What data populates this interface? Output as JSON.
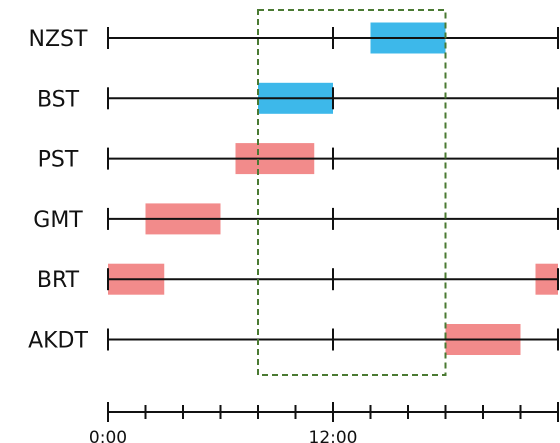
{
  "chart_data": {
    "type": "timeline",
    "x_unit": "hours",
    "xlim": [
      0,
      24
    ],
    "ticks": {
      "major": [
        0,
        12,
        24
      ],
      "minor_step": 2
    },
    "tick_labels": [
      {
        "x": 0,
        "text": "0:00"
      },
      {
        "x": 12,
        "text": "12:00"
      }
    ],
    "highlight_window": {
      "start": 8,
      "end": 18
    },
    "rows": [
      {
        "label": "NZST",
        "intervals": [
          {
            "start": 14,
            "end": 18,
            "color": "#3db8ea"
          }
        ]
      },
      {
        "label": "BST",
        "intervals": [
          {
            "start": 8,
            "end": 12,
            "color": "#3db8ea"
          }
        ]
      },
      {
        "label": "PST",
        "intervals": [
          {
            "start": 6.8,
            "end": 11,
            "color": "#f28b8b"
          }
        ]
      },
      {
        "label": "GMT",
        "intervals": [
          {
            "start": 2,
            "end": 6,
            "color": "#f28b8b"
          }
        ]
      },
      {
        "label": "BRT",
        "intervals": [
          {
            "start": 0,
            "end": 3,
            "color": "#f28b8b"
          },
          {
            "start": 22.8,
            "end": 24,
            "color": "#f28b8b"
          }
        ]
      },
      {
        "label": "AKDT",
        "intervals": [
          {
            "start": 18,
            "end": 22,
            "color": "#f28b8b"
          }
        ]
      }
    ],
    "colors": {
      "line": "#111111",
      "window_border": "#4a7a32",
      "available": "#3db8ea",
      "unavailable": "#f28b8b"
    }
  }
}
